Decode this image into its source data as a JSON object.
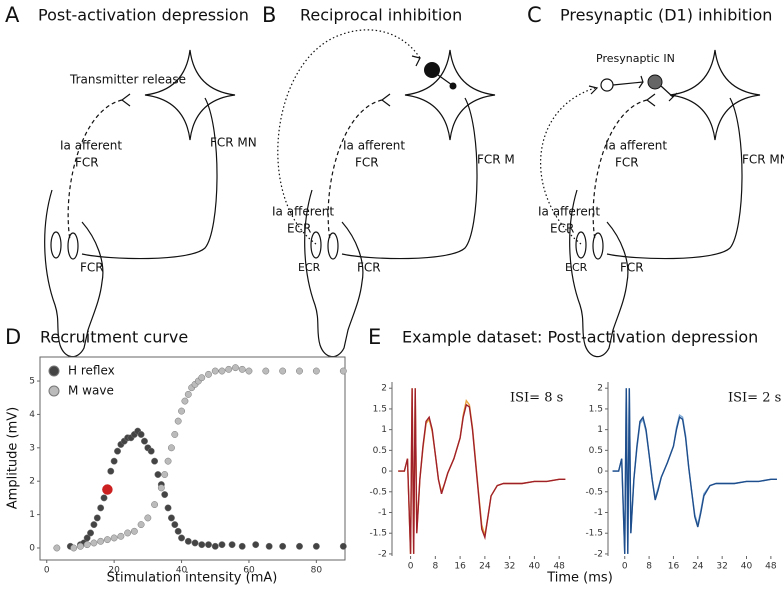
{
  "diagrams": [
    {
      "letter": "A",
      "title": "Post-activation depression",
      "labels": [
        "Transmitter release",
        "FCR MN",
        "Ia afferent",
        "FCR",
        "FCR"
      ]
    },
    {
      "letter": "B",
      "title": "Reciprocal inhibition",
      "labels": [
        "FCR M",
        "Ia afferent",
        "FCR",
        "Ia afferent",
        "ECR",
        "ECR",
        "FCR"
      ]
    },
    {
      "letter": "C",
      "title": "Presynaptic (D1) inhibition",
      "labels": [
        "Presynaptic IN",
        "FCR MN",
        "Ia afferent",
        "FCR",
        "Ia afferent",
        "ECR",
        "ECR",
        "FCR"
      ]
    }
  ],
  "figure_text": {
    "d_letter": "D",
    "d_title": "Recruitment curve",
    "e_letter": "E",
    "e_title": "Example dataset: Post-activation depression"
  },
  "chart_data": [
    {
      "type": "scatter",
      "xlabel": "Stimulation intensity (mA)",
      "ylabel": "Amplitude (mV)",
      "xlim": [
        -2,
        88.5
      ],
      "ylim": [
        -0.36,
        5.72
      ],
      "xticks": [
        0,
        20,
        40,
        60,
        80
      ],
      "yticks": [
        0,
        1,
        2,
        3,
        4,
        5
      ],
      "legend": "upper left",
      "series": [
        {
          "name": "H reflex",
          "color": "#444444",
          "x": [
            7,
            10,
            11,
            12,
            13,
            14,
            15,
            16,
            17,
            18,
            19,
            20,
            21,
            22,
            23,
            24,
            25,
            26,
            27,
            28,
            29,
            30,
            31,
            32,
            33,
            34,
            35,
            36,
            37,
            38,
            39,
            40,
            42,
            44,
            46,
            48,
            50,
            52,
            55,
            58,
            62,
            66,
            70,
            75,
            80,
            88
          ],
          "values": [
            0.05,
            0.1,
            0.15,
            0.3,
            0.45,
            0.7,
            0.9,
            1.2,
            1.5,
            1.8,
            2.3,
            2.6,
            2.9,
            3.1,
            3.2,
            3.3,
            3.3,
            3.4,
            3.5,
            3.4,
            3.2,
            3.0,
            2.9,
            2.6,
            2.2,
            1.9,
            1.6,
            1.2,
            0.9,
            0.7,
            0.5,
            0.3,
            0.2,
            0.15,
            0.1,
            0.1,
            0.05,
            0.1,
            0.1,
            0.05,
            0.1,
            0.05,
            0.05,
            0.05,
            0.05,
            0.05
          ]
        },
        {
          "name": "M wave",
          "color": "#bbbbbb",
          "x": [
            3,
            8,
            10,
            12,
            14,
            16,
            18,
            20,
            22,
            24,
            26,
            28,
            30,
            32,
            34,
            35,
            36,
            37,
            38,
            39,
            40,
            41,
            42,
            43,
            44,
            45,
            46,
            48,
            50,
            52,
            54,
            56,
            58,
            60,
            65,
            70,
            75,
            80,
            88
          ],
          "values": [
            0,
            0,
            0.05,
            0.1,
            0.15,
            0.2,
            0.25,
            0.3,
            0.35,
            0.45,
            0.5,
            0.7,
            0.9,
            1.3,
            1.8,
            2.2,
            2.6,
            3.0,
            3.4,
            3.8,
            4.1,
            4.4,
            4.6,
            4.8,
            4.9,
            5.0,
            5.1,
            5.2,
            5.3,
            5.3,
            5.35,
            5.4,
            5.35,
            5.3,
            5.3,
            5.3,
            5.3,
            5.3,
            5.3
          ]
        },
        {
          "color": "#cc1f1f",
          "x": [
            18
          ],
          "values": [
            1.75
          ]
        }
      ]
    },
    {
      "type": "line",
      "xlabel": "Time (ms)",
      "annotation": "ISI= 8 s",
      "xlim": [
        -6,
        51.5
      ],
      "ylim": [
        -2.05,
        2.15
      ],
      "xticks": [
        0,
        8,
        16,
        24,
        32,
        40,
        48
      ],
      "yticks": [
        -2,
        -1.5,
        -1,
        -0.5,
        0,
        0.5,
        1,
        1.5,
        2
      ],
      "x": [
        -4,
        -2,
        -1,
        0,
        0.5,
        1,
        1.5,
        2,
        3,
        4,
        5,
        6,
        7,
        8,
        9,
        10,
        11,
        12,
        14,
        16,
        17,
        18,
        19,
        20,
        21,
        22,
        23,
        24,
        25,
        26,
        28,
        30,
        32,
        36,
        40,
        44,
        48,
        50
      ],
      "series": [
        {
          "color": "#e8a33d",
          "values": [
            0,
            0,
            0.3,
            -2,
            2,
            -2,
            2,
            -1.5,
            -0.2,
            0.55,
            1.15,
            1.25,
            0.95,
            0.4,
            -0.2,
            -0.5,
            -0.3,
            -0.05,
            0.3,
            0.8,
            1.35,
            1.7,
            1.6,
            1.05,
            0.25,
            -0.55,
            -1.3,
            -1.55,
            -1.1,
            -0.6,
            -0.35,
            -0.3,
            -0.3,
            -0.3,
            -0.25,
            -0.25,
            -0.2,
            -0.2
          ]
        },
        {
          "color": "#a0202a",
          "values": [
            0,
            0,
            0.3,
            -2,
            2,
            -2,
            2,
            -1.5,
            -0.2,
            0.6,
            1.2,
            1.3,
            1.0,
            0.4,
            -0.2,
            -0.55,
            -0.3,
            -0.05,
            0.3,
            0.8,
            1.3,
            1.6,
            1.55,
            1.0,
            0.2,
            -0.6,
            -1.4,
            -1.6,
            -1.1,
            -0.6,
            -0.35,
            -0.3,
            -0.3,
            -0.3,
            -0.25,
            -0.25,
            -0.2,
            -0.2
          ]
        }
      ]
    },
    {
      "type": "line",
      "annotation": "ISI= 2 s",
      "xlim": [
        -5.5,
        51
      ],
      "ylim": [
        -2.05,
        2.15
      ],
      "xticks": [
        0,
        8,
        16,
        24,
        32,
        40,
        48
      ],
      "yticks": [
        -2,
        -1.5,
        -1,
        -0.5,
        0,
        0.5,
        1,
        1.5,
        2
      ],
      "x": [
        -4,
        -2,
        -1,
        0,
        0.5,
        1,
        1.5,
        2,
        3,
        4,
        5,
        6,
        7,
        8,
        9,
        10,
        11,
        12,
        14,
        16,
        17,
        18,
        19,
        20,
        21,
        22,
        23,
        24,
        25,
        26,
        28,
        30,
        32,
        36,
        40,
        44,
        48,
        50
      ],
      "series": [
        {
          "color": "#7fa9d6",
          "values": [
            0,
            0,
            0.3,
            -2,
            2,
            -2,
            2,
            -1.5,
            -0.2,
            0.55,
            1.15,
            1.25,
            0.95,
            0.4,
            -0.2,
            -0.65,
            -0.4,
            -0.15,
            0.2,
            0.6,
            1.05,
            1.35,
            1.3,
            0.85,
            0.1,
            -0.5,
            -1.05,
            -1.3,
            -0.95,
            -0.55,
            -0.35,
            -0.3,
            -0.3,
            -0.3,
            -0.25,
            -0.25,
            -0.2,
            -0.2
          ]
        },
        {
          "color": "#1f4e8c",
          "values": [
            0,
            0,
            0.3,
            -2,
            2,
            -2,
            2,
            -1.5,
            -0.2,
            0.6,
            1.2,
            1.3,
            1.0,
            0.4,
            -0.2,
            -0.7,
            -0.45,
            -0.15,
            0.2,
            0.6,
            1.0,
            1.3,
            1.25,
            0.8,
            0.1,
            -0.5,
            -1.1,
            -1.35,
            -1.0,
            -0.6,
            -0.35,
            -0.3,
            -0.3,
            -0.3,
            -0.25,
            -0.25,
            -0.2,
            -0.2
          ]
        }
      ]
    }
  ]
}
